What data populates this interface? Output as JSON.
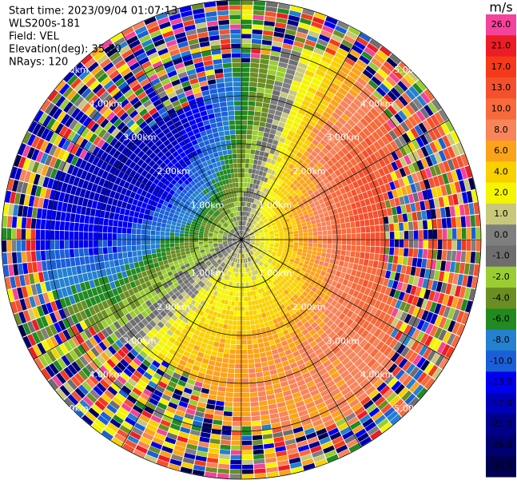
{
  "info": [
    "Start time: 2023/09/04 01:07:13",
    "WLS200s-181",
    "Field: VEL",
    "Elevation(deg): 35.30",
    "NRays: 120"
  ],
  "range_labels": [
    "1.00km",
    "2.00km",
    "3.00km",
    "4.00km",
    "5.00km"
  ],
  "colorbar": {
    "unit": "m/s",
    "ticks": [
      {
        "value": 26,
        "label": "26.0"
      },
      {
        "value": 21,
        "label": "21.0"
      },
      {
        "value": 17,
        "label": "17.0"
      },
      {
        "value": 13,
        "label": "13.0"
      },
      {
        "value": 10,
        "label": "10.0"
      },
      {
        "value": 8,
        "label": "8.0"
      },
      {
        "value": 6,
        "label": "6.0"
      },
      {
        "value": 4,
        "label": "4.0"
      },
      {
        "value": 2,
        "label": "2.0"
      },
      {
        "value": 1,
        "label": "1.0"
      },
      {
        "value": 0,
        "label": "0.0"
      },
      {
        "value": -1,
        "label": "-1.0"
      },
      {
        "value": -2,
        "label": "-2.0"
      },
      {
        "value": -4,
        "label": "-4.0"
      },
      {
        "value": -6,
        "label": "-6.0"
      },
      {
        "value": -8,
        "label": "-8.0"
      },
      {
        "value": -10,
        "label": "-10.0"
      },
      {
        "value": -13,
        "label": "-13.0"
      },
      {
        "value": -17,
        "label": "-17.0"
      },
      {
        "value": -21,
        "label": "-21.0"
      },
      {
        "value": -26,
        "label": "-26.0"
      },
      {
        "value": -30,
        "label": "-30.0"
      }
    ],
    "colors": [
      "#f4439a",
      "#ee1c24",
      "#f43a1a",
      "#f5502e",
      "#f66a3c",
      "#f8845a",
      "#fba31a",
      "#f9d000",
      "#f5f500",
      "#c8c87a",
      "#7f7f7f",
      "#6e6e6e",
      "#9acd32",
      "#6b8e23",
      "#218a21",
      "#2480d0",
      "#1a5fd8",
      "#0000f0",
      "#0000b8",
      "#00008c",
      "#000070",
      "#000050"
    ]
  }
}
